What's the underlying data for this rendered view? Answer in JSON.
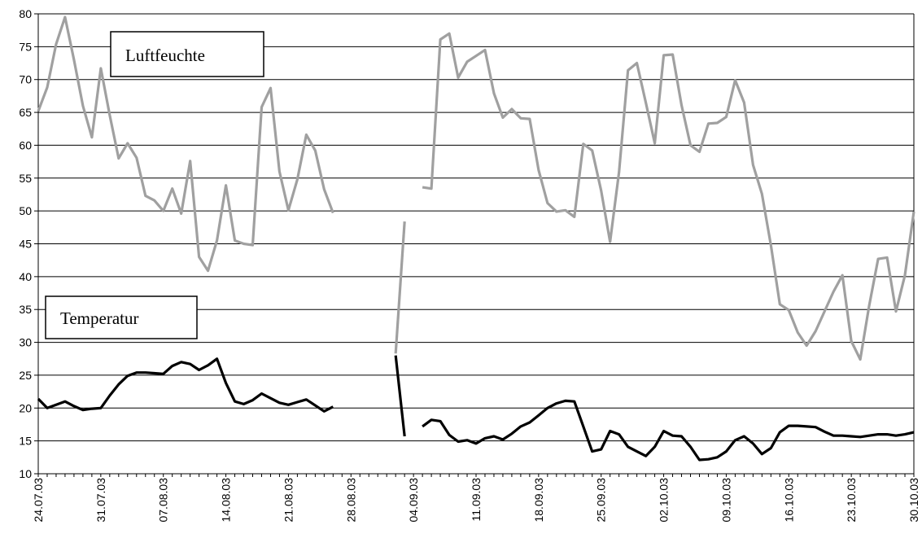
{
  "chart_data": {
    "type": "line",
    "title": "",
    "xlabel": "",
    "ylabel": "",
    "ylim": [
      10,
      80
    ],
    "yticks": [
      10,
      15,
      20,
      25,
      30,
      35,
      40,
      45,
      50,
      55,
      60,
      65,
      70,
      75,
      80
    ],
    "grid": "horizontal",
    "x_tick_labels": [
      "24.07.03",
      "31.07.03",
      "07.08.03",
      "14.08.03",
      "21.08.03",
      "28.08.03",
      "04.09.03",
      "11.09.03",
      "18.09.03",
      "25.09.03",
      "02.10.03",
      "09.10.03",
      "16.10.03",
      "23.10.03",
      "30.10.03"
    ],
    "x_days": 98,
    "series": [
      {
        "name": "Luftfeuchte",
        "color": "#a0a0a0",
        "segments": [
          [
            [
              0,
              65.2
            ],
            [
              1,
              68.8
            ],
            [
              2,
              75.4
            ],
            [
              3,
              79.5
            ],
            [
              4,
              73.0
            ],
            [
              5,
              66.0
            ],
            [
              6,
              61.2
            ],
            [
              7,
              71.7
            ],
            [
              8,
              64.6
            ],
            [
              9,
              58.0
            ],
            [
              10,
              60.3
            ],
            [
              11,
              58.1
            ],
            [
              12,
              52.3
            ],
            [
              13,
              51.6
            ],
            [
              14,
              50.0
            ],
            [
              15,
              53.4
            ],
            [
              16,
              49.6
            ],
            [
              17,
              57.6
            ],
            [
              18,
              43.0
            ],
            [
              19,
              40.9
            ],
            [
              20,
              45.5
            ],
            [
              21,
              53.9
            ],
            [
              22,
              45.5
            ],
            [
              23,
              45.0
            ],
            [
              24,
              44.8
            ],
            [
              25,
              65.8
            ],
            [
              26,
              68.7
            ],
            [
              27,
              56.0
            ],
            [
              28,
              50.1
            ],
            [
              29,
              54.8
            ],
            [
              30,
              61.6
            ],
            [
              31,
              59.2
            ],
            [
              32,
              53.3
            ],
            [
              33,
              49.7
            ]
          ],
          [
            [
              40,
              28.3
            ],
            [
              41,
              48.4
            ]
          ],
          [
            [
              43,
              53.6
            ],
            [
              44,
              53.4
            ],
            [
              45,
              76.1
            ],
            [
              46,
              77.0
            ],
            [
              47,
              70.3
            ],
            [
              48,
              72.7
            ],
            [
              49,
              73.6
            ],
            [
              50,
              74.5
            ],
            [
              51,
              67.9
            ],
            [
              52,
              64.2
            ],
            [
              53,
              65.5
            ],
            [
              54,
              64.1
            ],
            [
              55,
              64.0
            ],
            [
              56,
              56.2
            ],
            [
              57,
              51.2
            ],
            [
              58,
              49.9
            ],
            [
              59,
              50.1
            ],
            [
              60,
              49.1
            ],
            [
              61,
              60.2
            ],
            [
              62,
              59.2
            ],
            [
              63,
              53.1
            ],
            [
              64,
              45.3
            ],
            [
              65,
              55.9
            ],
            [
              66,
              71.4
            ],
            [
              67,
              72.5
            ],
            [
              68,
              66.5
            ],
            [
              69,
              60.3
            ],
            [
              70,
              73.7
            ],
            [
              71,
              73.8
            ],
            [
              72,
              66.1
            ],
            [
              73,
              60.0
            ],
            [
              74,
              59.0
            ],
            [
              75,
              63.3
            ],
            [
              76,
              63.4
            ],
            [
              77,
              64.3
            ],
            [
              78,
              69.9
            ],
            [
              79,
              66.5
            ],
            [
              80,
              57.0
            ],
            [
              81,
              52.6
            ],
            [
              82,
              44.8
            ],
            [
              83,
              35.8
            ],
            [
              84,
              34.9
            ],
            [
              85,
              31.5
            ],
            [
              86,
              29.5
            ],
            [
              87,
              31.7
            ],
            [
              88,
              34.7
            ],
            [
              89,
              37.7
            ],
            [
              90,
              40.2
            ],
            [
              91,
              30.2
            ],
            [
              92,
              27.4
            ],
            [
              93,
              35.6
            ],
            [
              94,
              42.7
            ],
            [
              95,
              42.9
            ],
            [
              96,
              34.7
            ],
            [
              97,
              40.2
            ],
            [
              98,
              49.9
            ]
          ]
        ]
      },
      {
        "name": "Temperatur",
        "color": "#000000",
        "segments": [
          [
            [
              0,
              21.4
            ],
            [
              1,
              20.0
            ],
            [
              2,
              20.5
            ],
            [
              3,
              21.0
            ],
            [
              4,
              20.3
            ],
            [
              5,
              19.7
            ],
            [
              6,
              19.9
            ],
            [
              7,
              20.0
            ],
            [
              8,
              21.9
            ],
            [
              9,
              23.6
            ],
            [
              10,
              24.9
            ],
            [
              11,
              25.4
            ],
            [
              12,
              25.4
            ],
            [
              13,
              25.3
            ],
            [
              14,
              25.2
            ],
            [
              15,
              26.4
            ],
            [
              16,
              27.0
            ],
            [
              17,
              26.7
            ],
            [
              18,
              25.8
            ],
            [
              19,
              26.5
            ],
            [
              20,
              27.5
            ],
            [
              21,
              23.8
            ],
            [
              22,
              21.0
            ],
            [
              23,
              20.6
            ],
            [
              24,
              21.2
            ],
            [
              25,
              22.2
            ],
            [
              26,
              21.5
            ],
            [
              27,
              20.8
            ],
            [
              28,
              20.5
            ],
            [
              29,
              20.9
            ],
            [
              30,
              21.3
            ],
            [
              31,
              20.4
            ],
            [
              32,
              19.5
            ],
            [
              33,
              20.2
            ]
          ],
          [
            [
              40,
              28.0
            ],
            [
              41,
              15.7
            ]
          ],
          [
            [
              43,
              17.2
            ],
            [
              44,
              18.2
            ],
            [
              45,
              18.0
            ],
            [
              46,
              15.9
            ],
            [
              47,
              14.9
            ],
            [
              48,
              15.1
            ],
            [
              49,
              14.6
            ],
            [
              50,
              15.4
            ],
            [
              51,
              15.7
            ],
            [
              52,
              15.2
            ],
            [
              53,
              16.1
            ],
            [
              54,
              17.2
            ],
            [
              55,
              17.8
            ],
            [
              56,
              18.9
            ],
            [
              57,
              20.0
            ],
            [
              58,
              20.7
            ],
            [
              59,
              21.1
            ],
            [
              60,
              21.0
            ],
            [
              61,
              17.2
            ],
            [
              62,
              13.4
            ],
            [
              63,
              13.7
            ],
            [
              64,
              16.5
            ],
            [
              65,
              16.0
            ],
            [
              66,
              14.1
            ],
            [
              67,
              13.4
            ],
            [
              68,
              12.7
            ],
            [
              69,
              14.1
            ],
            [
              70,
              16.5
            ],
            [
              71,
              15.8
            ],
            [
              72,
              15.7
            ],
            [
              73,
              14.1
            ],
            [
              74,
              12.1
            ],
            [
              75,
              12.2
            ],
            [
              76,
              12.5
            ],
            [
              77,
              13.4
            ],
            [
              78,
              15.1
            ],
            [
              79,
              15.7
            ],
            [
              80,
              14.6
            ],
            [
              81,
              13.0
            ],
            [
              82,
              13.9
            ],
            [
              83,
              16.3
            ],
            [
              84,
              17.3
            ],
            [
              85,
              17.3
            ],
            [
              86,
              17.2
            ],
            [
              87,
              17.1
            ],
            [
              88,
              16.4
            ],
            [
              89,
              15.8
            ],
            [
              90,
              15.8
            ],
            [
              91,
              15.7
            ],
            [
              92,
              15.6
            ],
            [
              93,
              15.8
            ],
            [
              94,
              16.0
            ],
            [
              95,
              16.0
            ],
            [
              96,
              15.8
            ],
            [
              97,
              16.0
            ],
            [
              98,
              16.3
            ]
          ]
        ]
      }
    ],
    "annotations": [
      "Luftfeuchte",
      "Temperatur"
    ]
  }
}
